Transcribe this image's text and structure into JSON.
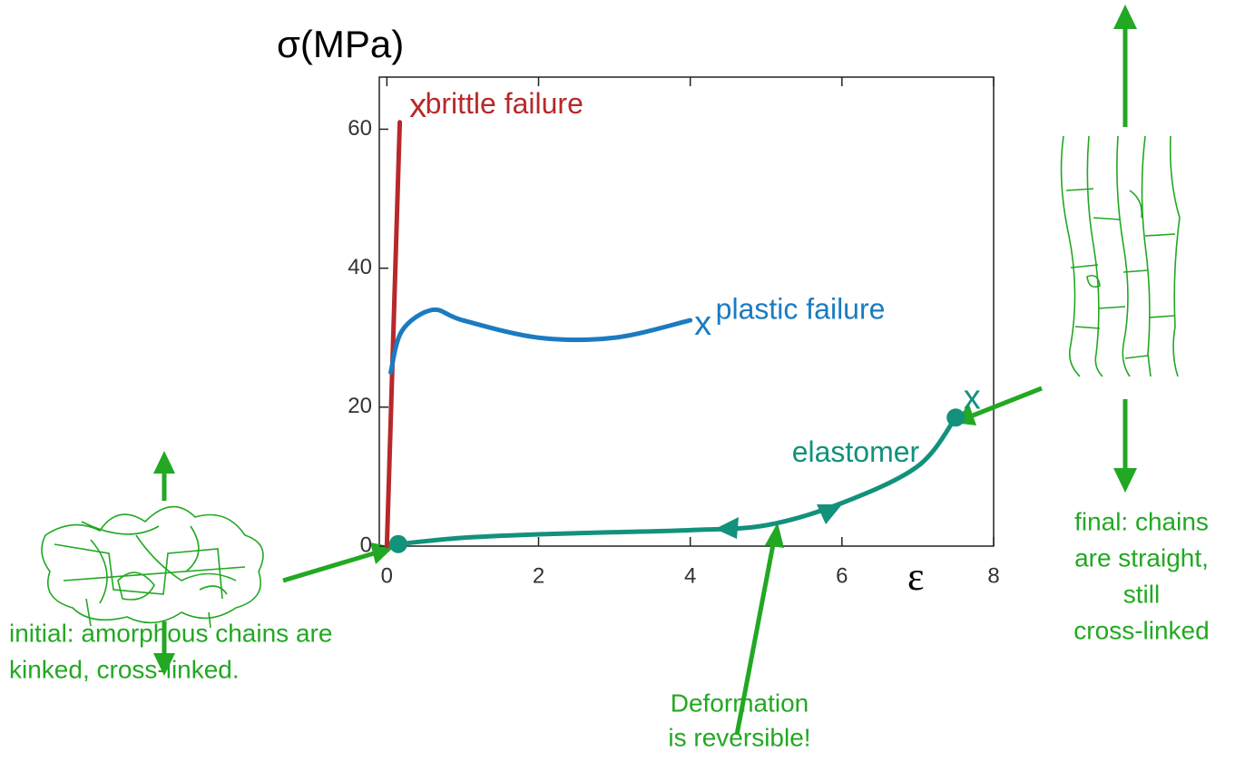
{
  "chart_data": {
    "type": "line",
    "title": "σ(MPa)",
    "x_label": "ε",
    "xlim": [
      -0.1,
      8
    ],
    "xticks": [
      0,
      2,
      4,
      6,
      8
    ],
    "ylim": [
      0,
      67.5
    ],
    "yticks": [
      0,
      20,
      40,
      60
    ],
    "series": [
      {
        "name": "brittle failure",
        "color": "#b8282a",
        "end_marker": "x",
        "x": [
          0,
          0.17
        ],
        "values": [
          0,
          61
        ]
      },
      {
        "name": "plastic failure",
        "color": "#1b7bc0",
        "end_marker": "x",
        "x": [
          0.05,
          0.2,
          0.6,
          1,
          2,
          3,
          4
        ],
        "values": [
          25,
          31,
          34,
          32.5,
          30,
          30,
          32.5
        ]
      },
      {
        "name": "elastomer",
        "color": "#12917c",
        "end_marker": "x",
        "x": [
          0.15,
          1,
          2,
          3,
          4,
          5,
          6,
          7,
          7.5
        ],
        "values": [
          0.3,
          1.2,
          1.7,
          2,
          2.3,
          3,
          6.2,
          11.5,
          18.5
        ]
      }
    ],
    "annotations": {
      "initial": [
        "initial:  amorphous chains are",
        "kinked, cross-linked."
      ],
      "middle": [
        "Deformation",
        "is reversible!"
      ],
      "final": [
        "final: chains",
        "are straight,",
        "still",
        "cross-linked"
      ]
    }
  }
}
